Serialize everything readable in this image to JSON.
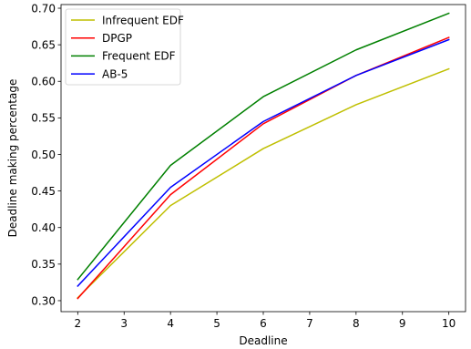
{
  "chart_data": {
    "type": "line",
    "title": "",
    "xlabel": "Deadline",
    "ylabel": "Deadline making percentage",
    "xlim": [
      1.64,
      10.36
    ],
    "ylim": [
      0.285,
      0.705
    ],
    "xticks": [
      2,
      3,
      4,
      5,
      6,
      7,
      8,
      9,
      10
    ],
    "yticks": [
      0.3,
      0.35,
      0.4,
      0.45,
      0.5,
      0.55,
      0.6,
      0.65,
      0.7
    ],
    "grid": false,
    "legend_position": "upper-left",
    "x": [
      2,
      4,
      6,
      8,
      10
    ],
    "series": [
      {
        "name": "Infrequent EDF",
        "color": "#bfbf00",
        "values": [
          0.304,
          0.43,
          0.508,
          0.568,
          0.617
        ]
      },
      {
        "name": "DPGP",
        "color": "#ff0000",
        "values": [
          0.303,
          0.445,
          0.542,
          0.608,
          0.66
        ]
      },
      {
        "name": "Frequent EDF",
        "color": "#008000",
        "values": [
          0.329,
          0.485,
          0.579,
          0.643,
          0.693
        ]
      },
      {
        "name": "AB-5",
        "color": "#0000ff",
        "values": [
          0.32,
          0.455,
          0.545,
          0.608,
          0.657
        ]
      }
    ]
  }
}
